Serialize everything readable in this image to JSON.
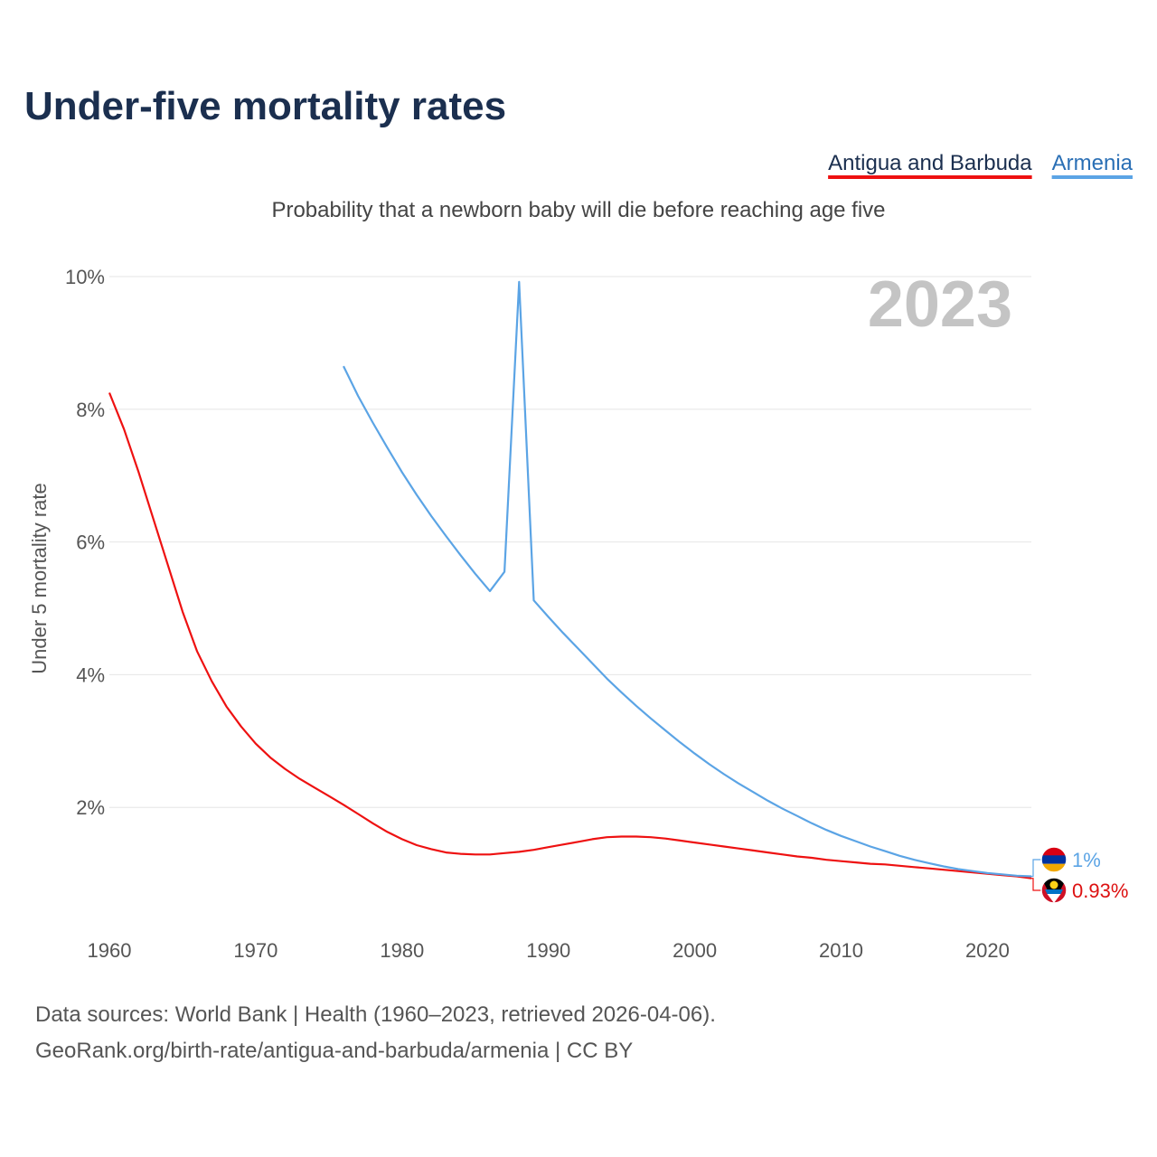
{
  "chart_data": {
    "type": "line",
    "title": "Under-five mortality rates",
    "subtitle": "Probability that a newborn baby will die before reaching age five",
    "ylabel": "Under 5 mortality rate",
    "xlabel": "",
    "year_watermark": "2023",
    "xlim": [
      1960,
      2023
    ],
    "ylim": [
      0,
      10
    ],
    "x_ticks": [
      1960,
      1970,
      1980,
      1990,
      2000,
      2010,
      2020
    ],
    "y_ticks": [
      2,
      4,
      6,
      8,
      10
    ],
    "y_tick_labels": [
      "2%",
      "4%",
      "6%",
      "8%",
      "10%"
    ],
    "grid": true,
    "legend_position": "top-right",
    "series": [
      {
        "name": "Antigua and Barbuda",
        "color": "#ee1111",
        "end_label": "0.93%",
        "flag_icon": "antigua-and-barbuda-flag-icon",
        "x": [
          1960,
          1961,
          1962,
          1963,
          1964,
          1965,
          1966,
          1967,
          1968,
          1969,
          1970,
          1971,
          1972,
          1973,
          1974,
          1975,
          1976,
          1977,
          1978,
          1979,
          1980,
          1981,
          1982,
          1983,
          1984,
          1985,
          1986,
          1987,
          1988,
          1989,
          1990,
          1991,
          1992,
          1993,
          1994,
          1995,
          1996,
          1997,
          1998,
          1999,
          2000,
          2001,
          2002,
          2003,
          2004,
          2005,
          2006,
          2007,
          2008,
          2009,
          2010,
          2011,
          2012,
          2013,
          2014,
          2015,
          2016,
          2017,
          2018,
          2019,
          2020,
          2021,
          2022,
          2023
        ],
        "values": [
          8.25,
          7.7,
          7.05,
          6.35,
          5.65,
          4.95,
          4.35,
          3.9,
          3.52,
          3.22,
          2.96,
          2.75,
          2.58,
          2.43,
          2.3,
          2.17,
          2.04,
          1.9,
          1.76,
          1.63,
          1.52,
          1.43,
          1.37,
          1.32,
          1.3,
          1.29,
          1.29,
          1.31,
          1.33,
          1.36,
          1.4,
          1.44,
          1.48,
          1.52,
          1.55,
          1.56,
          1.56,
          1.55,
          1.53,
          1.5,
          1.47,
          1.44,
          1.41,
          1.38,
          1.35,
          1.32,
          1.29,
          1.26,
          1.24,
          1.21,
          1.19,
          1.17,
          1.15,
          1.14,
          1.12,
          1.1,
          1.08,
          1.06,
          1.04,
          1.02,
          1.0,
          0.98,
          0.96,
          0.93
        ]
      },
      {
        "name": "Armenia",
        "color": "#5ba4e5",
        "end_label": "1%",
        "flag_icon": "armenia-flag-icon",
        "x": [
          1976,
          1977,
          1978,
          1979,
          1980,
          1981,
          1982,
          1983,
          1984,
          1985,
          1986,
          1987,
          1988,
          1989,
          1990,
          1991,
          1992,
          1993,
          1994,
          1995,
          1996,
          1997,
          1998,
          1999,
          2000,
          2001,
          2002,
          2003,
          2004,
          2005,
          2006,
          2007,
          2008,
          2009,
          2010,
          2011,
          2012,
          2013,
          2014,
          2015,
          2016,
          2017,
          2018,
          2019,
          2020,
          2021,
          2022,
          2023
        ],
        "values": [
          8.65,
          8.2,
          7.8,
          7.42,
          7.05,
          6.71,
          6.39,
          6.09,
          5.8,
          5.52,
          5.26,
          5.55,
          9.92,
          5.12,
          4.87,
          4.63,
          4.4,
          4.17,
          3.94,
          3.73,
          3.53,
          3.34,
          3.16,
          2.98,
          2.81,
          2.65,
          2.5,
          2.36,
          2.23,
          2.1,
          1.98,
          1.87,
          1.76,
          1.66,
          1.57,
          1.49,
          1.41,
          1.34,
          1.27,
          1.21,
          1.16,
          1.11,
          1.07,
          1.04,
          1.01,
          0.99,
          0.97,
          0.96
        ]
      }
    ]
  },
  "source_line_1": "Data sources: World Bank | Health (1960–2023, retrieved 2026-04-06).",
  "source_line_2": "GeoRank.org/birth-rate/antigua-and-barbuda/armenia | CC BY"
}
